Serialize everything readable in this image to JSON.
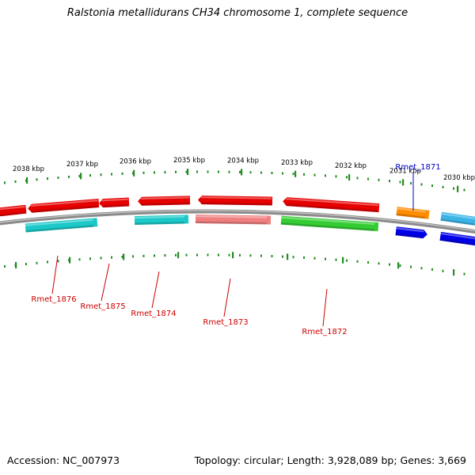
{
  "title": "Ralstonia metallidurans CH34 chromosome 1, complete sequence",
  "footer": {
    "accession": "Accession: NC_007973",
    "summary": "Topology: circular; Length: 3,928,089 bp; Genes: 3,669"
  },
  "scale_labels": [
    "2038 kbp",
    "2037 kbp",
    "2036 kbp",
    "2035 kbp",
    "2034 kbp",
    "2033 kbp",
    "2032 kbp",
    "2031 kbp",
    "2030 kbp"
  ],
  "gene_labels": [
    {
      "text": "Rmet_1876",
      "color": "#cc0000"
    },
    {
      "text": "Rmet_1875",
      "color": "#cc0000"
    },
    {
      "text": "Rmet_1874",
      "color": "#cc0000"
    },
    {
      "text": "Rmet_1873",
      "color": "#cc0000"
    },
    {
      "text": "Rmet_1872",
      "color": "#cc0000"
    },
    {
      "text": "Rmet_1871",
      "color": "#0000cc"
    }
  ],
  "colors": {
    "backbone": "#8a8a8a",
    "tick": "#228b22",
    "red": "#e60000",
    "pink": "#f08080",
    "cyan": "#1cc8c8",
    "green": "#33cc33",
    "orange": "#ff8c00",
    "blue": "#0000e6",
    "light_blue": "#3cb4e6"
  },
  "features": [
    {
      "track": "top",
      "color": "red",
      "dir": "left"
    },
    {
      "track": "top",
      "color": "red",
      "dir": "left"
    },
    {
      "track": "top",
      "color": "red",
      "dir": "left"
    },
    {
      "track": "top",
      "color": "red",
      "dir": "left"
    },
    {
      "track": "top",
      "color": "red",
      "dir": "left"
    },
    {
      "track": "top",
      "color": "red",
      "dir": "left"
    },
    {
      "track": "top",
      "color": "orange",
      "dir": "none"
    },
    {
      "track": "top",
      "color": "light_blue",
      "dir": "none"
    },
    {
      "track": "bottom",
      "color": "cyan",
      "dir": "none"
    },
    {
      "track": "bottom",
      "color": "cyan",
      "dir": "none"
    },
    {
      "track": "bottom",
      "color": "pink",
      "dir": "none"
    },
    {
      "track": "bottom",
      "color": "green",
      "dir": "none"
    },
    {
      "track": "bottom",
      "color": "blue",
      "dir": "right"
    },
    {
      "track": "bottom",
      "color": "blue",
      "dir": "none"
    }
  ]
}
